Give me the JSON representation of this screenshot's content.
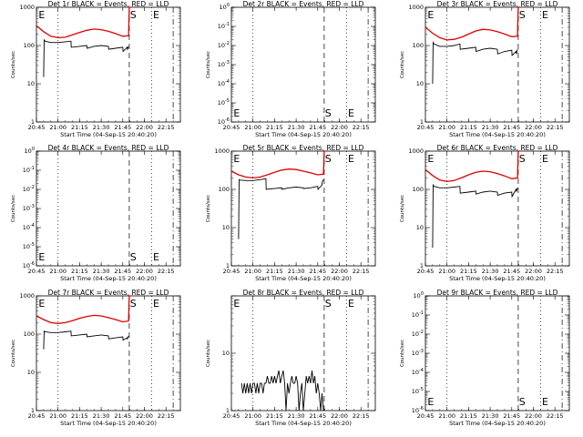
{
  "chart_data": [
    {
      "type": "line",
      "title": "Det 1r BLACK = Events, RED = LLD",
      "xlabel": "Start Time (04-Sep-15 20:40:20)",
      "ylabel": "Counts/sec",
      "x_ticks": [
        "20:45",
        "21:00",
        "21:15",
        "21:30",
        "21:45",
        "22:00",
        "22:15"
      ],
      "y_scale": "log",
      "y_ticks": [
        "1",
        "10",
        "100",
        "1000"
      ],
      "y_ticks_exp": false,
      "ylim": [
        1,
        1000
      ],
      "markers": [
        "E",
        "S",
        "E"
      ],
      "series": [
        {
          "color": "#e00000",
          "x": [
            0,
            5,
            10,
            15,
            20,
            25,
            30,
            35,
            40,
            45,
            50,
            55,
            60,
            64,
            64.5,
            66
          ],
          "y": [
            330,
            230,
            175,
            160,
            165,
            190,
            220,
            250,
            270,
            260,
            235,
            205,
            175,
            180,
            1000,
            1000
          ]
        },
        {
          "color": "#000000",
          "x": [
            5,
            5.4,
            6,
            10,
            15,
            20,
            24,
            24.2,
            30,
            35,
            35.2,
            40,
            45,
            50,
            50.2,
            55,
            60,
            60.2,
            63,
            63.2,
            64
          ],
          "y": [
            15,
            140,
            130,
            120,
            120,
            125,
            130,
            90,
            95,
            100,
            85,
            95,
            100,
            95,
            80,
            85,
            90,
            70,
            90,
            80,
            95
          ]
        }
      ]
    },
    {
      "type": "line",
      "title": "Det 2r BLACK = Events, RED = LLD",
      "xlabel": "Start Time (04-Sep-15 20:40:20)",
      "ylabel": "Counts/sec",
      "x_ticks": [
        "20:45",
        "21:00",
        "21:15",
        "21:30",
        "21:45",
        "22:00",
        "22:15"
      ],
      "y_scale": "log",
      "y_ticks": [
        "10",
        "10",
        "10",
        "10",
        "10",
        "10",
        "10"
      ],
      "y_ticks_exp": true,
      "y_exponents": [
        "0",
        "-1",
        "-2",
        "-3",
        "-4",
        "-5",
        "-6"
      ],
      "ylim": [
        1e-06,
        1
      ],
      "markers": [
        "E",
        "S",
        "E"
      ],
      "series": []
    },
    {
      "type": "line",
      "title": "Det 3r BLACK = Events, RED = LLD",
      "xlabel": "Start Time (04-Sep-15 20:40:20)",
      "ylabel": "Counts/sec",
      "x_ticks": [
        "20:45",
        "21:00",
        "21:15",
        "21:30",
        "21:45",
        "22:00",
        "22:15"
      ],
      "y_scale": "log",
      "y_ticks": [
        "1",
        "10",
        "100",
        "1000"
      ],
      "y_ticks_exp": false,
      "ylim": [
        1,
        1000
      ],
      "markers": [
        "E",
        "S",
        "E"
      ],
      "series": [
        {
          "color": "#e00000",
          "x": [
            0,
            5,
            10,
            15,
            20,
            25,
            30,
            35,
            40,
            45,
            50,
            55,
            60,
            64,
            64.5,
            66
          ],
          "y": [
            300,
            210,
            160,
            140,
            145,
            165,
            200,
            240,
            265,
            255,
            230,
            200,
            170,
            175,
            1000,
            1000
          ]
        },
        {
          "color": "#000000",
          "x": [
            5,
            5.4,
            6,
            10,
            15,
            20,
            24,
            24.2,
            30,
            35,
            35.2,
            40,
            45,
            50,
            50.2,
            55,
            60,
            60.2,
            63,
            63.2,
            64
          ],
          "y": [
            10,
            120,
            110,
            95,
            95,
            100,
            110,
            80,
            85,
            90,
            70,
            80,
            85,
            80,
            60,
            70,
            75,
            55,
            70,
            60,
            80
          ]
        }
      ]
    },
    {
      "type": "line",
      "title": "Det 4r BLACK = Events, RED = LLD",
      "xlabel": "Start Time (04-Sep-15 20:40:20)",
      "ylabel": "Counts/sec",
      "x_ticks": [
        "20:45",
        "21:00",
        "21:15",
        "21:30",
        "21:45",
        "22:00",
        "22:15"
      ],
      "y_scale": "log",
      "y_ticks": [
        "10",
        "10",
        "10",
        "10",
        "10",
        "10",
        "10"
      ],
      "y_ticks_exp": true,
      "y_exponents": [
        "0",
        "-1",
        "-2",
        "-3",
        "-4",
        "-5",
        "-6"
      ],
      "ylim": [
        1e-06,
        1
      ],
      "markers": [
        "E",
        "S",
        "E"
      ],
      "series": []
    },
    {
      "type": "line",
      "title": "Det 5r BLACK = Events, RED = LLD",
      "xlabel": "Start Time (04-Sep-15 20:40:20)",
      "ylabel": "Counts/sec",
      "x_ticks": [
        "20:45",
        "21:00",
        "21:15",
        "21:30",
        "21:45",
        "22:00",
        "22:15"
      ],
      "y_scale": "log",
      "y_ticks": [
        "1",
        "10",
        "100",
        "1000"
      ],
      "y_ticks_exp": false,
      "ylim": [
        1,
        1000
      ],
      "markers": [
        "E",
        "S",
        "E"
      ],
      "series": [
        {
          "color": "#e00000",
          "x": [
            0,
            5,
            10,
            15,
            20,
            25,
            30,
            35,
            40,
            45,
            50,
            55,
            60,
            64,
            64.5,
            66
          ],
          "y": [
            300,
            240,
            210,
            200,
            210,
            240,
            280,
            320,
            340,
            330,
            300,
            270,
            240,
            250,
            1000,
            1000
          ]
        },
        {
          "color": "#000000",
          "x": [
            5,
            5.4,
            6,
            10,
            15,
            20,
            24,
            24.2,
            30,
            35,
            35.2,
            40,
            45,
            50,
            50.2,
            55,
            60,
            60.2,
            63,
            63.2,
            64
          ],
          "y": [
            5,
            180,
            175,
            170,
            170,
            180,
            190,
            100,
            105,
            110,
            100,
            110,
            115,
            110,
            105,
            110,
            120,
            100,
            130,
            160,
            180
          ]
        }
      ]
    },
    {
      "type": "line",
      "title": "Det 6r BLACK = Events, RED = LLD",
      "xlabel": "Start Time (04-Sep-15 20:40:20)",
      "ylabel": "Counts/sec",
      "x_ticks": [
        "20:45",
        "21:00",
        "21:15",
        "21:30",
        "21:45",
        "22:00",
        "22:15"
      ],
      "y_scale": "log",
      "y_ticks": [
        "1",
        "10",
        "100",
        "1000"
      ],
      "y_ticks_exp": false,
      "ylim": [
        1,
        1000
      ],
      "markers": [
        "E",
        "S",
        "E"
      ],
      "series": [
        {
          "color": "#e00000",
          "x": [
            0,
            5,
            10,
            15,
            20,
            25,
            30,
            35,
            40,
            45,
            50,
            55,
            60,
            64,
            64.5,
            66
          ],
          "y": [
            330,
            230,
            175,
            160,
            170,
            200,
            240,
            280,
            300,
            290,
            260,
            225,
            190,
            200,
            1000,
            1000
          ]
        },
        {
          "color": "#000000",
          "x": [
            5,
            5.4,
            6,
            10,
            15,
            20,
            24,
            24.2,
            30,
            35,
            35.2,
            40,
            45,
            50,
            50.2,
            55,
            60,
            60.2,
            63,
            63.2,
            64
          ],
          "y": [
            3,
            130,
            120,
            110,
            110,
            115,
            120,
            80,
            85,
            90,
            75,
            85,
            90,
            85,
            70,
            80,
            85,
            65,
            100,
            90,
            110
          ]
        }
      ]
    },
    {
      "type": "line",
      "title": "Det 7r BLACK = Events, RED = LLD",
      "xlabel": "Start Time (04-Sep-15 20:40:20)",
      "ylabel": "Counts/sec",
      "x_ticks": [
        "20:45",
        "21:00",
        "21:15",
        "21:30",
        "21:45",
        "22:00",
        "22:15"
      ],
      "y_scale": "log",
      "y_ticks": [
        "1",
        "10",
        "100",
        "1000"
      ],
      "y_ticks_exp": false,
      "ylim": [
        1,
        1000
      ],
      "markers": [
        "E",
        "S",
        "E"
      ],
      "series": [
        {
          "color": "#e00000",
          "x": [
            0,
            5,
            10,
            15,
            20,
            25,
            30,
            35,
            40,
            45,
            50,
            55,
            60,
            64,
            64.5,
            66
          ],
          "y": [
            300,
            240,
            200,
            190,
            200,
            225,
            260,
            290,
            310,
            300,
            270,
            240,
            210,
            220,
            1000,
            1000
          ]
        },
        {
          "color": "#000000",
          "x": [
            5,
            5.4,
            6,
            10,
            15,
            20,
            24,
            24.2,
            30,
            35,
            35.2,
            40,
            45,
            50,
            50.2,
            55,
            60,
            60.2,
            63,
            63.2,
            64
          ],
          "y": [
            40,
            120,
            115,
            110,
            110,
            115,
            120,
            90,
            95,
            100,
            85,
            90,
            95,
            90,
            75,
            80,
            85,
            70,
            80,
            75,
            90
          ]
        }
      ]
    },
    {
      "type": "line",
      "title": "Det 8r BLACK = Events, RED = LLD",
      "xlabel": "Start Time (04-Sep-15 20:40:20)",
      "ylabel": "Counts/sec",
      "x_ticks": [
        "20:45",
        "21:00",
        "21:15",
        "21:30",
        "21:45",
        "22:00",
        "22:15"
      ],
      "y_scale": "log",
      "y_ticks": [
        "1",
        "10"
      ],
      "y_ticks_exp": false,
      "ylim": [
        1,
        100
      ],
      "markers": [
        "E",
        "S",
        "E"
      ],
      "series": [
        {
          "color": "#000000",
          "x": [
            7,
            8,
            9,
            10,
            11,
            12,
            13,
            14,
            15,
            16,
            17,
            18,
            19,
            20,
            21,
            22,
            23,
            24,
            25,
            26,
            27,
            28,
            29,
            30,
            31,
            32,
            33,
            34,
            35,
            36,
            37,
            38,
            39,
            40,
            41,
            42,
            43,
            44,
            45,
            46,
            47,
            48,
            49,
            50,
            51,
            52,
            53,
            54,
            55,
            56,
            57,
            58,
            59,
            60,
            61,
            62,
            63,
            64
          ],
          "y": [
            3,
            2,
            3,
            2,
            3,
            2,
            3,
            2,
            3,
            3,
            2,
            3,
            2,
            3,
            3,
            2,
            3,
            3,
            4,
            3,
            3,
            4,
            3,
            4,
            3,
            4,
            5,
            3,
            4,
            5,
            3,
            1,
            3,
            2,
            3,
            4,
            3,
            3,
            4,
            3,
            1,
            2,
            3,
            1,
            2,
            4,
            3,
            4,
            3,
            5,
            3,
            4,
            2,
            3,
            2,
            1,
            2,
            1
          ]
        }
      ]
    },
    {
      "type": "line",
      "title": "Det 9r BLACK = Events, RED = LLD",
      "xlabel": "Start Time (04-Sep-15 20:40:20)",
      "ylabel": "Counts/sec",
      "x_ticks": [
        "20:45",
        "21:00",
        "21:15",
        "21:30",
        "21:45",
        "22:00",
        "22:15"
      ],
      "y_scale": "log",
      "y_ticks": [
        "10",
        "10",
        "10",
        "10",
        "10",
        "10",
        "10"
      ],
      "y_ticks_exp": true,
      "y_exponents": [
        "0",
        "-1",
        "-2",
        "-3",
        "-4",
        "-5",
        "-6"
      ],
      "ylim": [
        1e-06,
        1
      ],
      "markers": [
        "E",
        "S",
        "E"
      ],
      "series": []
    }
  ]
}
